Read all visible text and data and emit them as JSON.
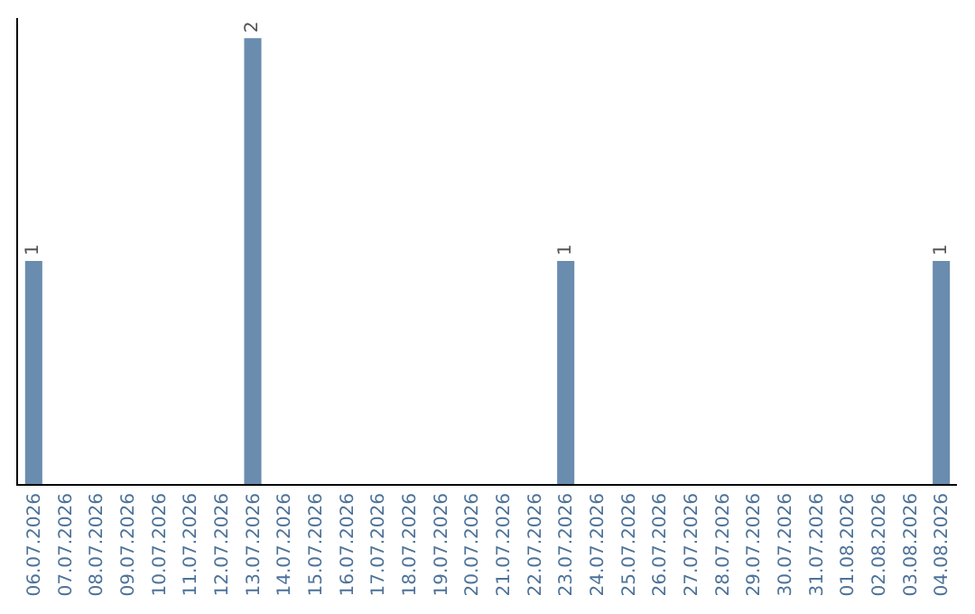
{
  "chart_data": {
    "type": "bar",
    "categories": [
      "06.07.2026",
      "07.07.2026",
      "08.07.2026",
      "09.07.2026",
      "10.07.2026",
      "11.07.2026",
      "12.07.2026",
      "13.07.2026",
      "14.07.2026",
      "15.07.2026",
      "16.07.2026",
      "17.07.2026",
      "18.07.2026",
      "19.07.2026",
      "20.07.2026",
      "21.07.2026",
      "22.07.2026",
      "23.07.2026",
      "24.07.2026",
      "25.07.2026",
      "26.07.2026",
      "27.07.2026",
      "28.07.2026",
      "29.07.2026",
      "30.07.2026",
      "31.07.2026",
      "01.08.2026",
      "02.08.2026",
      "03.08.2026",
      "04.08.2026"
    ],
    "values": [
      1,
      0,
      0,
      0,
      0,
      0,
      0,
      2,
      0,
      0,
      0,
      0,
      0,
      0,
      0,
      0,
      0,
      1,
      0,
      0,
      0,
      0,
      0,
      0,
      0,
      0,
      0,
      0,
      0,
      1
    ],
    "value_labels": [
      "1",
      null,
      null,
      null,
      null,
      null,
      null,
      "2",
      null,
      null,
      null,
      null,
      null,
      null,
      null,
      null,
      null,
      "1",
      null,
      null,
      null,
      null,
      null,
      null,
      null,
      null,
      null,
      null,
      null,
      "1"
    ],
    "color": "#6a8caf",
    "tick_labels": "x"
  }
}
